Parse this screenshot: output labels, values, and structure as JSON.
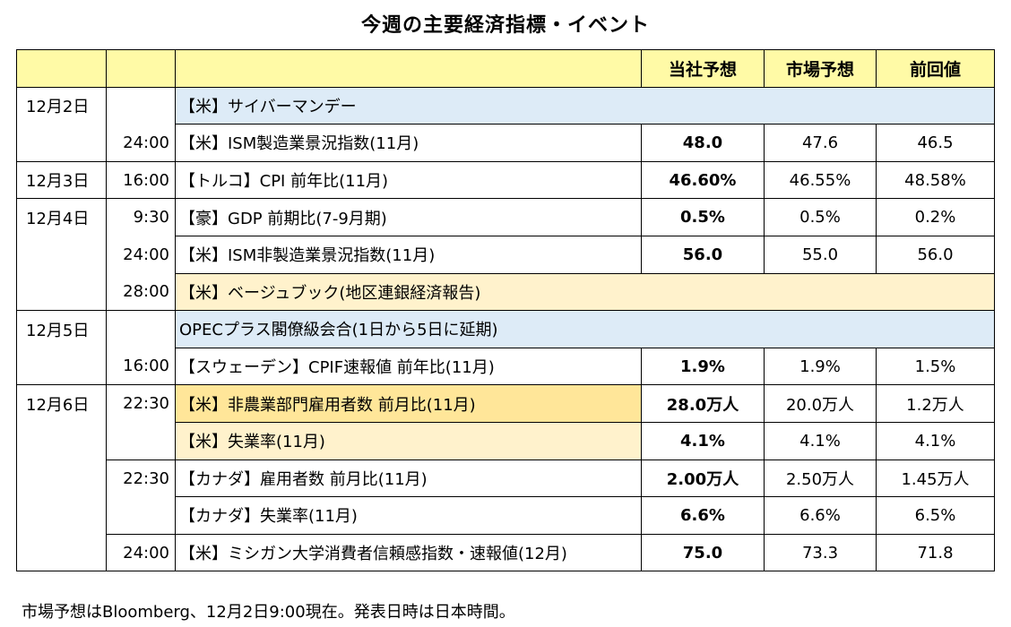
{
  "title": "今週の主要経済指標・イベント",
  "header": {
    "forecast_company": "当社予想",
    "forecast_market": "市場予想",
    "previous": "前回値"
  },
  "rows": [
    {
      "date": "12月2日",
      "time": "",
      "event": "【米】サイバーマンデー",
      "company": "",
      "market": "",
      "previous": ""
    },
    {
      "date": "",
      "time": "24:00",
      "event": "【米】ISM製造業景況指数(11月)",
      "company": "48.0",
      "market": "47.6",
      "previous": "46.5"
    },
    {
      "date": "12月3日",
      "time": "16:00",
      "event": "【トルコ】CPI 前年比(11月)",
      "company": "46.60%",
      "market": "46.55%",
      "previous": "48.58%"
    },
    {
      "date": "12月4日",
      "time": "9:30",
      "event": "【豪】GDP 前期比(7-9月期)",
      "company": "0.5%",
      "market": "0.5%",
      "previous": "0.2%"
    },
    {
      "date": "",
      "time": "24:00",
      "event": "【米】ISM非製造業景況指数(11月)",
      "company": "56.0",
      "market": "55.0",
      "previous": "56.0"
    },
    {
      "date": "",
      "time": "28:00",
      "event": "【米】ベージュブック(地区連銀経済報告)",
      "company": "",
      "market": "",
      "previous": ""
    },
    {
      "date": "12月5日",
      "time": "",
      "event": "OPECプラス閣僚級会合(1日から5日に延期)",
      "company": "",
      "market": "",
      "previous": ""
    },
    {
      "date": "",
      "time": "16:00",
      "event": "【スウェーデン】CPIF速報値 前年比(11月)",
      "company": "1.9%",
      "market": "1.9%",
      "previous": "1.5%"
    },
    {
      "date": "12月6日",
      "time": "22:30",
      "event": "【米】非農業部門雇用者数 前月比(11月)",
      "company": "28.0万人",
      "market": "20.0万人",
      "previous": "1.2万人"
    },
    {
      "date": "",
      "time": "",
      "event": "【米】失業率(11月)",
      "company": "4.1%",
      "market": "4.1%",
      "previous": "4.1%"
    },
    {
      "date": "",
      "time": "22:30",
      "event": "【カナダ】雇用者数 前月比(11月)",
      "company": "2.00万人",
      "market": "2.50万人",
      "previous": "1.45万人"
    },
    {
      "date": "",
      "time": "",
      "event": "【カナダ】失業率(11月)",
      "company": "6.6%",
      "market": "6.6%",
      "previous": "6.5%"
    },
    {
      "date": "",
      "time": "24:00",
      "event": "【米】ミシガン大学消費者信頼感指数・速報値(12月)",
      "company": "75.0",
      "market": "73.3",
      "previous": "71.8"
    }
  ],
  "footnote": "市場予想はBloomberg、12月2日9:00現在。発表日時は日本時間。",
  "colors": {
    "header_bg": "#fffaa6",
    "event_blue": "#ddebf7",
    "event_cream": "#fff2cc",
    "event_gold": "#ffe699"
  }
}
